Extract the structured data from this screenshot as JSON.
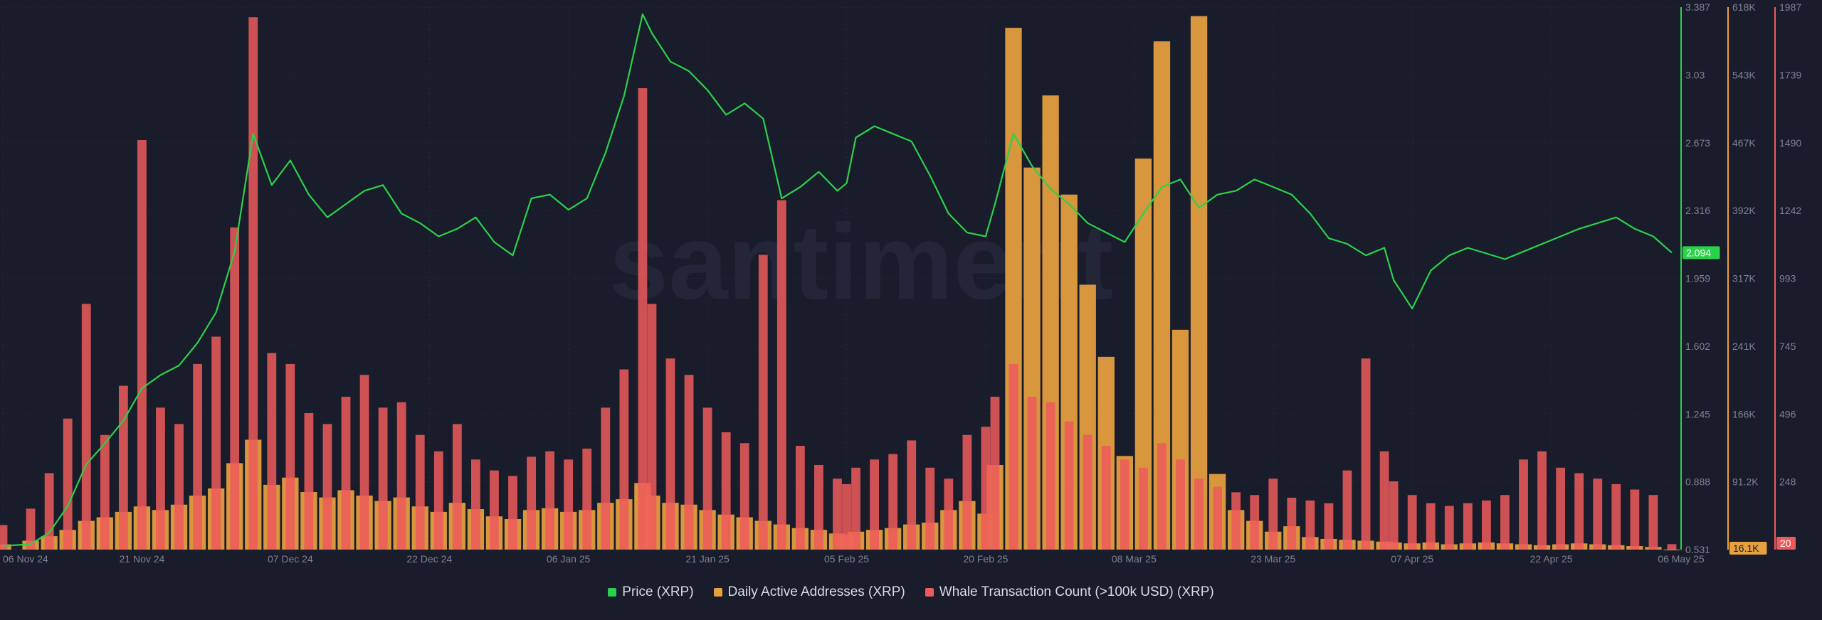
{
  "watermark": "santiment",
  "colors": {
    "background": "#191c2a",
    "grid": "#262a3a",
    "price": "#2bd14b",
    "active": "#e8a13f",
    "whale": "#ee5a5c",
    "axis_text": "#7d8296"
  },
  "legend": [
    {
      "label": "Price (XRP)",
      "color": "#2bd14b"
    },
    {
      "label": "Daily Active Addresses (XRP)",
      "color": "#e8a13f"
    },
    {
      "label": "Whale Transaction Count (>100k USD) (XRP)",
      "color": "#ee5a5c"
    }
  ],
  "badges": {
    "price_current": "2.094",
    "active_current": "16.1K",
    "whale_current": "20"
  },
  "chart_data": {
    "type": "line",
    "x_tick_labels": [
      "06 Nov 24",
      "21 Nov 24",
      "07 Dec 24",
      "22 Dec 24",
      "06 Jan 25",
      "21 Jan 25",
      "05 Feb 25",
      "20 Feb 25",
      "08 Mar 25",
      "23 Mar 25",
      "07 Apr 25",
      "22 Apr 25",
      "06 May 25"
    ],
    "x_tick_days": [
      0,
      15,
      31,
      46,
      61,
      76,
      91,
      106,
      122,
      137,
      152,
      167,
      181
    ],
    "x_range_days": [
      0,
      181
    ],
    "axes": {
      "price": {
        "ticks": [
          "0.531",
          "0.888",
          "1.245",
          "1.602",
          "1.959",
          "2.316",
          "2.673",
          "3.03",
          "3.387"
        ],
        "range": [
          0.531,
          3.387
        ]
      },
      "active": {
        "ticks": [
          "91.2K",
          "166K",
          "241K",
          "317K",
          "392K",
          "467K",
          "543K",
          "618K"
        ],
        "range": [
          16100,
          618000
        ]
      },
      "whale": {
        "ticks": [
          "248",
          "496",
          "745",
          "993",
          "1242",
          "1490",
          "1739",
          "1987"
        ],
        "range": [
          0,
          1987
        ]
      }
    },
    "grid": true,
    "legend_position": "bottom-center",
    "series": [
      {
        "name": "Price (XRP)",
        "type": "line",
        "axis": "price",
        "x": [
          0,
          3,
          5,
          7,
          9,
          11,
          13,
          15,
          17,
          19,
          21,
          23,
          25,
          27,
          29,
          31,
          33,
          35,
          37,
          39,
          41,
          43,
          45,
          47,
          49,
          51,
          53,
          55,
          57,
          59,
          61,
          63,
          65,
          67,
          69,
          70,
          72,
          74,
          76,
          78,
          80,
          82,
          84,
          86,
          88,
          90,
          91,
          92,
          94,
          96,
          98,
          100,
          102,
          104,
          106,
          107,
          109,
          111,
          113,
          115,
          117,
          119,
          121,
          123,
          125,
          127,
          129,
          131,
          133,
          135,
          137,
          139,
          141,
          143,
          145,
          147,
          149,
          150,
          152,
          154,
          156,
          158,
          160,
          162,
          164,
          166,
          168,
          170,
          172,
          174,
          176,
          178,
          180
        ],
        "values": [
          0.55,
          0.56,
          0.62,
          0.76,
          0.98,
          1.09,
          1.21,
          1.38,
          1.45,
          1.5,
          1.62,
          1.78,
          2.1,
          2.72,
          2.45,
          2.58,
          2.4,
          2.28,
          2.35,
          2.42,
          2.45,
          2.3,
          2.25,
          2.18,
          2.22,
          2.28,
          2.15,
          2.08,
          2.38,
          2.4,
          2.32,
          2.38,
          2.62,
          2.92,
          3.35,
          3.25,
          3.1,
          3.05,
          2.95,
          2.82,
          2.88,
          2.8,
          2.38,
          2.44,
          2.52,
          2.42,
          2.46,
          2.7,
          2.76,
          2.72,
          2.68,
          2.5,
          2.3,
          2.2,
          2.18,
          2.35,
          2.72,
          2.55,
          2.43,
          2.35,
          2.25,
          2.2,
          2.15,
          2.3,
          2.44,
          2.48,
          2.33,
          2.4,
          2.42,
          2.48,
          2.44,
          2.4,
          2.3,
          2.17,
          2.14,
          2.08,
          2.12,
          1.95,
          1.8,
          2.0,
          2.08,
          2.12,
          2.09,
          2.06,
          2.1,
          2.14,
          2.18,
          2.22,
          2.25,
          2.28,
          2.22,
          2.18,
          2.094
        ]
      },
      {
        "name": "Daily Active Addresses (XRP)",
        "type": "bar",
        "axis": "active",
        "x": [
          0,
          3,
          5,
          7,
          9,
          11,
          13,
          15,
          17,
          19,
          21,
          23,
          25,
          27,
          29,
          31,
          33,
          35,
          37,
          39,
          41,
          43,
          45,
          47,
          49,
          51,
          53,
          55,
          57,
          59,
          61,
          63,
          65,
          67,
          69,
          70,
          72,
          74,
          76,
          78,
          80,
          82,
          84,
          86,
          88,
          90,
          91,
          92,
          94,
          96,
          98,
          100,
          102,
          104,
          106,
          107,
          109,
          111,
          113,
          115,
          117,
          119,
          121,
          123,
          125,
          127,
          129,
          131,
          133,
          135,
          137,
          139,
          141,
          143,
          145,
          147,
          149,
          150,
          152,
          154,
          156,
          158,
          160,
          162,
          164,
          166,
          168,
          170,
          172,
          174,
          176,
          178,
          180
        ],
        "values": [
          22000,
          26000,
          31000,
          38000,
          48000,
          52000,
          58000,
          64000,
          60000,
          66000,
          76000,
          84000,
          112000,
          138000,
          88000,
          96000,
          80000,
          74000,
          82000,
          76000,
          70000,
          74000,
          64000,
          58000,
          68000,
          61000,
          53000,
          50000,
          60000,
          62000,
          58000,
          60000,
          68000,
          72000,
          90000,
          76000,
          68000,
          66000,
          60000,
          55000,
          52000,
          48000,
          44000,
          40000,
          38000,
          34000,
          33000,
          36000,
          38000,
          40000,
          44000,
          46000,
          60000,
          70000,
          56000,
          110000,
          595000,
          440000,
          520000,
          410000,
          310000,
          230000,
          120000,
          450000,
          580000,
          260000,
          608000,
          100000,
          60000,
          48000,
          36000,
          42000,
          30000,
          28000,
          27000,
          26000,
          25000,
          24000,
          23000,
          24000,
          22000,
          23000,
          24000,
          23000,
          22000,
          21000,
          22000,
          23000,
          22000,
          21000,
          20000,
          19000,
          16100
        ]
      },
      {
        "name": "Whale Transaction Count (>100k USD) (XRP)",
        "type": "bar",
        "axis": "whale",
        "x": [
          0,
          3,
          5,
          7,
          9,
          11,
          13,
          15,
          17,
          19,
          21,
          23,
          25,
          27,
          29,
          31,
          33,
          35,
          37,
          39,
          41,
          43,
          45,
          47,
          49,
          51,
          53,
          55,
          57,
          59,
          61,
          63,
          65,
          67,
          69,
          70,
          72,
          74,
          76,
          78,
          80,
          82,
          84,
          86,
          88,
          90,
          91,
          92,
          94,
          96,
          98,
          100,
          102,
          104,
          106,
          107,
          109,
          111,
          113,
          115,
          117,
          119,
          121,
          123,
          125,
          127,
          129,
          131,
          133,
          135,
          137,
          139,
          141,
          143,
          145,
          147,
          149,
          150,
          152,
          154,
          156,
          158,
          160,
          162,
          164,
          166,
          168,
          170,
          172,
          174,
          176,
          178,
          180
        ],
        "values": [
          90,
          150,
          280,
          480,
          900,
          420,
          600,
          1500,
          520,
          460,
          680,
          780,
          1180,
          1950,
          720,
          680,
          500,
          460,
          560,
          640,
          520,
          540,
          420,
          360,
          460,
          330,
          290,
          270,
          340,
          360,
          330,
          370,
          520,
          660,
          1690,
          900,
          700,
          640,
          520,
          430,
          390,
          1080,
          1280,
          380,
          310,
          260,
          240,
          300,
          330,
          350,
          400,
          300,
          260,
          420,
          450,
          560,
          680,
          560,
          540,
          470,
          420,
          380,
          330,
          300,
          390,
          330,
          260,
          230,
          210,
          200,
          260,
          190,
          180,
          170,
          290,
          700,
          360,
          250,
          200,
          170,
          160,
          170,
          180,
          200,
          330,
          360,
          300,
          280,
          260,
          240,
          220,
          200,
          20
        ]
      }
    ]
  }
}
